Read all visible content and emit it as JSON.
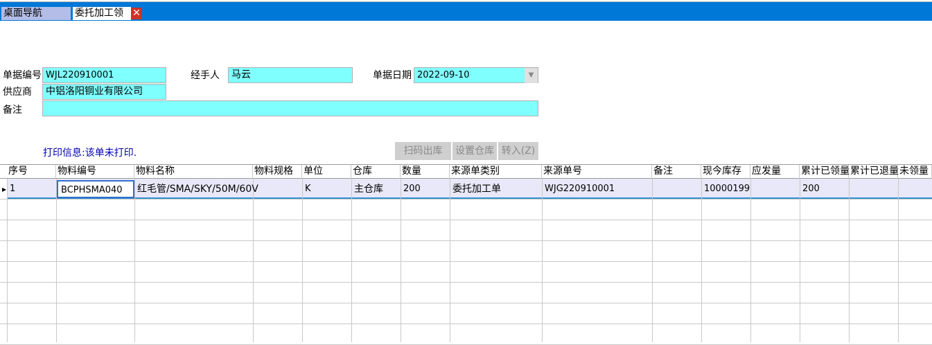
{
  "tabs": [
    {
      "label": "桌面导航"
    },
    {
      "label": "委托加工领"
    }
  ],
  "form": {
    "doc_no_label": "单据编号",
    "doc_no": "WJL220910001",
    "handler_label": "经手人",
    "handler": "马云",
    "date_label": "单据日期",
    "date": "2022-09-10",
    "supplier_label": "供应商",
    "supplier": "中铝洛阳铜业有限公司",
    "remark_label": "备注",
    "remark": ""
  },
  "print_info": "打印信息:该单未打印.",
  "buttons": {
    "scan_out": "扫码出库",
    "set_warehouse": "设置仓库",
    "transfer_in": "转入(Z)"
  },
  "table": {
    "columns": [
      "序号",
      "物料编号",
      "物料名称",
      "物料规格",
      "单位",
      "仓库",
      "数量",
      "来源单类别",
      "来源单号",
      "备注",
      "现今库存",
      "应发量",
      "累计已领量",
      "累计已退量",
      "未领量"
    ],
    "rows": [
      [
        "1",
        "BCPHSMA040",
        "红毛管/SMA/SKY/50M/60V",
        "",
        "K",
        "主仓库",
        "200",
        "委托加工单",
        "WJG220910001",
        "",
        "10000199",
        "",
        "200",
        "",
        ""
      ]
    ]
  }
}
